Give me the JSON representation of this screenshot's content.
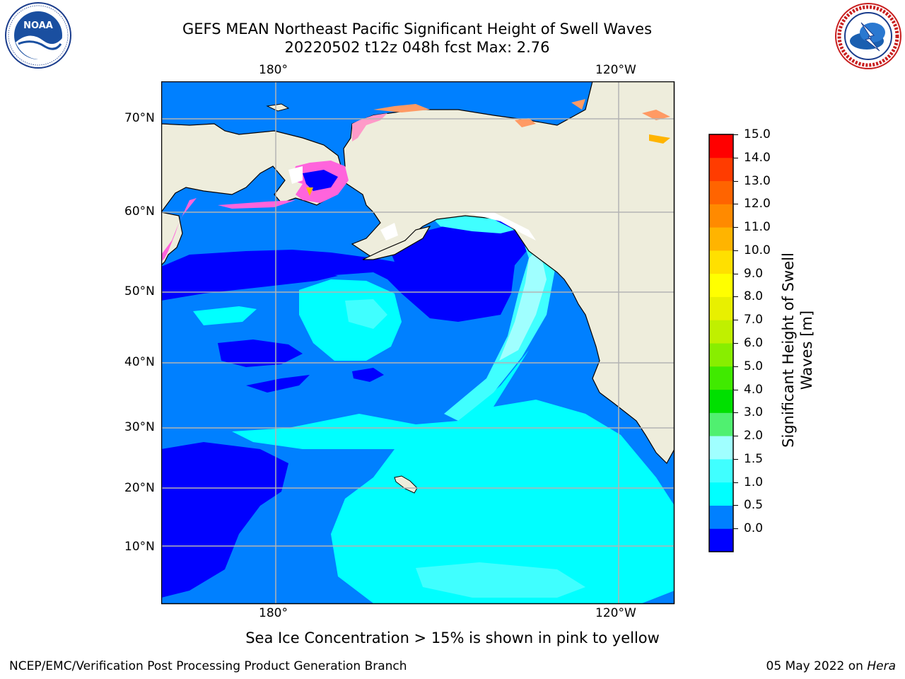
{
  "header": {
    "title_line1": "GEFS MEAN Northeast Pacific Significant Height of Swell Waves",
    "title_line2": "20220502 t12z 048h fcst   Max: 2.76"
  },
  "logos": {
    "left_org": "NOAA",
    "left_ring_text": "NATIONAL OCEANIC AND ATMOSPHERIC ADMINISTRATION · U.S. DEPARTMENT OF COMMERCE",
    "right_ring_text": "NATIONAL WEATHER SERVICE"
  },
  "map": {
    "lon_top": [
      "180°",
      "120°W"
    ],
    "lon_bottom": [
      "180°",
      "120°W"
    ],
    "lat_labels": [
      "70°N",
      "60°N",
      "50°N",
      "40°N",
      "30°N",
      "20°N",
      "10°N"
    ],
    "colors": {
      "land": "#eeeddc",
      "ice": "#ffffff",
      "coast": "#000000",
      "grid": "#b4b4b4"
    }
  },
  "colorbar": {
    "ticks": [
      "15.0",
      "14.0",
      "13.0",
      "12.0",
      "11.0",
      "10.0",
      "9.0",
      "8.0",
      "7.0",
      "6.0",
      "5.0",
      "4.0",
      "3.0",
      "2.0",
      "1.5",
      "1.0",
      "0.5",
      "0.0"
    ],
    "colors": [
      "#0000ff",
      "#0080ff",
      "#00ffff",
      "#40ffff",
      "#a0ffff",
      "#50f070",
      "#00e000",
      "#40ea00",
      "#88ee00",
      "#c0f000",
      "#e8f000",
      "#ffff00",
      "#ffe000",
      "#ffb400",
      "#ff8a00",
      "#ff6400",
      "#ff3c00",
      "#ff0000"
    ],
    "label": "Significant Height of Swell Waves [m]"
  },
  "note": "Sea Ice Concentration > 15% is shown in pink to yellow",
  "footer": {
    "left": "NCEP/EMC/Verification Post Processing Product Generation Branch",
    "date": "05 May 2022 on",
    "machine": "Hera"
  }
}
